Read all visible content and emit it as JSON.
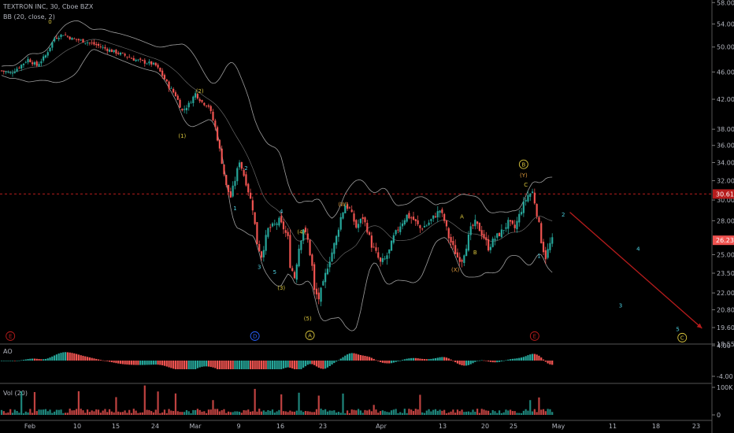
{
  "header": {
    "symbol_line": "TEXTRON INC, 30, Cboe BZX",
    "bb_label": "BB (20, close, 2)",
    "ao_label": "AO",
    "vol_label": "Vol (20)"
  },
  "colors": {
    "background": "#000000",
    "up": "#26a69a",
    "down": "#ef5350",
    "wave_yellow": "#d6c23c",
    "wave_orange": "#e09b3d",
    "wave_cyan": "#4dd0e1",
    "wave_blue": "#2962ff",
    "wave_red": "#b71c1c",
    "projection": "#b71c1c",
    "band": "#9e9e9e"
  },
  "chart_data": {
    "type": "candlestick",
    "title": "TEXTRON INC, 30, Cboe BZX",
    "ylim": [
      18.55,
      58.5
    ],
    "y_ticks": [
      "58.00",
      "54.00",
      "50.00",
      "46.00",
      "42.00",
      "38.00",
      "36.00",
      "34.00",
      "32.00",
      "30.00",
      "28.00",
      "25.00",
      "23.50",
      "22.00",
      "20.80",
      "19.60",
      "18.55"
    ],
    "x_ticks": [
      "Feb",
      "10",
      "15",
      "24",
      "Mar",
      "9",
      "16",
      "23",
      "Apr",
      "13",
      "20",
      "25",
      "May",
      "11",
      "18",
      "23"
    ],
    "last_price": "26.23",
    "reference_price": "30.61",
    "price_path": [
      [
        0,
        46.2
      ],
      [
        4,
        45.8
      ],
      [
        8,
        46.8
      ],
      [
        12,
        48.0
      ],
      [
        16,
        47.0
      ],
      [
        20,
        48.6
      ],
      [
        24,
        51.5
      ],
      [
        28,
        52.2
      ],
      [
        32,
        51.4
      ],
      [
        36,
        51.1
      ],
      [
        40,
        50.7
      ],
      [
        44,
        50.2
      ],
      [
        48,
        49.6
      ],
      [
        52,
        49.1
      ],
      [
        56,
        48.6
      ],
      [
        60,
        48.0
      ],
      [
        64,
        47.6
      ],
      [
        68,
        47.3
      ],
      [
        70,
        47.0
      ],
      [
        73,
        45.5
      ],
      [
        76,
        43.8
      ],
      [
        79,
        42.6
      ],
      [
        82,
        40.4
      ],
      [
        85,
        41.3
      ],
      [
        88,
        42.8
      ],
      [
        91,
        41.6
      ],
      [
        94,
        41.1
      ],
      [
        97,
        38.2
      ],
      [
        100,
        34.1
      ],
      [
        102,
        31.4
      ],
      [
        104,
        30.3
      ],
      [
        106,
        32.1
      ],
      [
        108,
        34.2
      ],
      [
        111,
        31.8
      ],
      [
        114,
        29.2
      ],
      [
        116,
        26.0
      ],
      [
        118,
        24.9
      ],
      [
        121,
        27.2
      ],
      [
        124,
        27.6
      ],
      [
        126,
        28.0
      ],
      [
        128,
        27.3
      ],
      [
        130,
        26.4
      ],
      [
        131,
        24.2
      ],
      [
        133,
        23.2
      ],
      [
        135,
        25.6
      ],
      [
        137,
        27.3
      ],
      [
        139,
        26.2
      ],
      [
        141,
        24.0
      ],
      [
        142,
        22.1
      ],
      [
        144,
        21.6
      ],
      [
        146,
        22.6
      ],
      [
        148,
        24.1
      ],
      [
        150,
        25.2
      ],
      [
        152,
        26.5
      ],
      [
        154,
        28.3
      ],
      [
        156,
        29.5
      ],
      [
        158,
        29.1
      ],
      [
        161,
        27.4
      ],
      [
        164,
        28.3
      ],
      [
        166,
        27.2
      ],
      [
        168,
        25.8
      ],
      [
        170,
        25.1
      ],
      [
        172,
        24.3
      ],
      [
        174,
        24.6
      ],
      [
        176,
        25.3
      ],
      [
        178,
        26.5
      ],
      [
        181,
        27.6
      ],
      [
        184,
        28.5
      ],
      [
        187,
        28.1
      ],
      [
        190,
        27.3
      ],
      [
        193,
        27.6
      ],
      [
        196,
        28.3
      ],
      [
        199,
        29.0
      ],
      [
        201,
        28.0
      ],
      [
        203,
        26.5
      ],
      [
        205,
        25.6
      ],
      [
        207,
        24.8
      ],
      [
        209,
        24.6
      ],
      [
        211,
        25.8
      ],
      [
        213,
        27.2
      ],
      [
        215,
        27.8
      ],
      [
        217,
        27.2
      ],
      [
        219,
        26.5
      ],
      [
        221,
        25.6
      ],
      [
        224,
        26.4
      ],
      [
        227,
        27.0
      ],
      [
        230,
        27.8
      ],
      [
        233,
        27.3
      ],
      [
        235,
        28.5
      ],
      [
        237,
        29.6
      ],
      [
        239,
        30.5
      ],
      [
        241,
        30.8
      ],
      [
        242,
        29.8
      ],
      [
        244,
        27.6
      ],
      [
        245,
        26.2
      ],
      [
        246,
        25.4
      ],
      [
        247,
        24.8
      ],
      [
        249,
        25.9
      ],
      [
        250,
        26.23
      ]
    ],
    "projection": {
      "from": [
        258,
        28.8
      ],
      "to": [
        318,
        19.55
      ]
    },
    "ao_series": "Awesome Oscillator histogram, range about -4.00 to 4.00",
    "ao_ticks": [
      "4.00",
      "-4.00"
    ],
    "volume_ticks": [
      "100K",
      "0"
    ],
    "wave_labels": [
      {
        "t": "0",
        "x": 22,
        "y": 54.4,
        "c": "yellow"
      },
      {
        "t": "(1)",
        "x": 82,
        "y": 37.2,
        "c": "yellow"
      },
      {
        "t": "(2)",
        "x": 90,
        "y": 43.2,
        "c": "yellow"
      },
      {
        "t": "2",
        "x": 111,
        "y": 33.4,
        "c": "cyan"
      },
      {
        "t": "1",
        "x": 106,
        "y": 29.2,
        "c": "cyan"
      },
      {
        "t": "4",
        "x": 127,
        "y": 28.9,
        "c": "cyan"
      },
      {
        "t": "3",
        "x": 117,
        "y": 24.0,
        "c": "cyan"
      },
      {
        "t": "5",
        "x": 124,
        "y": 23.6,
        "c": "cyan"
      },
      {
        "t": "(3)",
        "x": 127,
        "y": 22.4,
        "c": "yellow"
      },
      {
        "t": "(4)",
        "x": 136,
        "y": 27.0,
        "c": "yellow"
      },
      {
        "t": "(5)",
        "x": 139,
        "y": 20.2,
        "c": "yellow"
      },
      {
        "t": "A",
        "x": 140,
        "y": 19.1,
        "c": "yellow",
        "circled": true
      },
      {
        "t": "(W)",
        "x": 155,
        "y": 29.6,
        "c": "orange"
      },
      {
        "t": "A",
        "x": 209,
        "y": 28.4,
        "c": "yellow"
      },
      {
        "t": "(X)",
        "x": 206,
        "y": 23.8,
        "c": "orange"
      },
      {
        "t": "B",
        "x": 215,
        "y": 25.2,
        "c": "yellow"
      },
      {
        "t": "C",
        "x": 238,
        "y": 31.6,
        "c": "yellow"
      },
      {
        "t": "(Y)",
        "x": 237,
        "y": 32.6,
        "c": "orange"
      },
      {
        "t": "B",
        "x": 237,
        "y": 33.8,
        "c": "yellow",
        "circled": true
      },
      {
        "t": "1",
        "x": 244,
        "y": 24.9,
        "c": "cyan"
      },
      {
        "t": "2",
        "x": 255,
        "y": 28.6,
        "c": "cyan"
      },
      {
        "t": "3",
        "x": 281,
        "y": 21.1,
        "c": "cyan"
      },
      {
        "t": "4",
        "x": 289,
        "y": 25.5,
        "c": "cyan"
      },
      {
        "t": "5",
        "x": 307,
        "y": 19.5,
        "c": "cyan"
      },
      {
        "t": "C",
        "x": 309,
        "y": 18.95,
        "c": "yellow",
        "circled": true
      },
      {
        "t": "E",
        "x": 4,
        "y": 19.05,
        "c": "red",
        "circled": true
      },
      {
        "t": "D",
        "x": 115,
        "y": 19.05,
        "c": "blue",
        "circled": true
      },
      {
        "t": "E",
        "x": 242,
        "y": 19.05,
        "c": "red",
        "circled": true
      }
    ]
  }
}
